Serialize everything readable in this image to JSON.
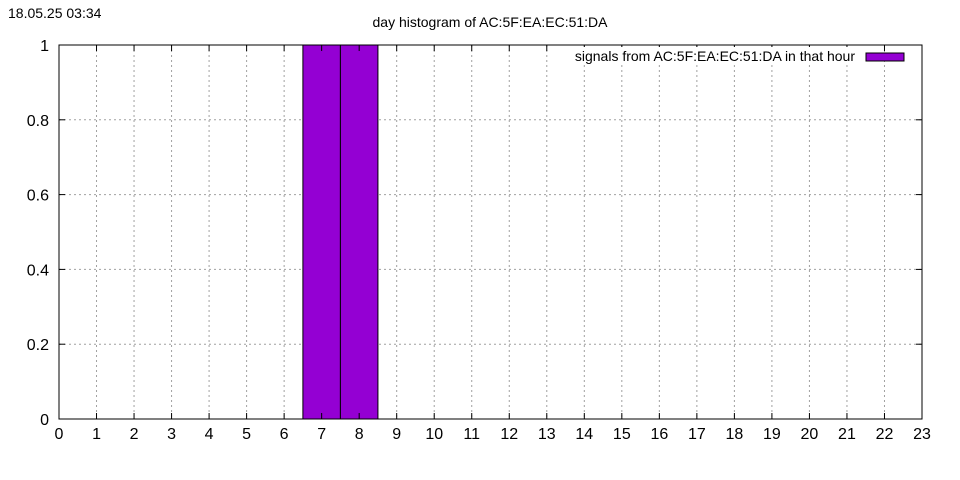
{
  "timestamp": "18.05.25 03:34",
  "chart_data": {
    "type": "bar",
    "title": "day histogram of AC:5F:EA:EC:51:DA",
    "xlabel": "",
    "ylabel": "",
    "x": [
      0,
      1,
      2,
      3,
      4,
      5,
      6,
      7,
      8,
      9,
      10,
      11,
      12,
      13,
      14,
      15,
      16,
      17,
      18,
      19,
      20,
      21,
      22,
      23
    ],
    "xlim": [
      0,
      23
    ],
    "ylim": [
      0,
      1
    ],
    "x_ticks": [
      "0",
      "1",
      "2",
      "3",
      "4",
      "5",
      "6",
      "7",
      "8",
      "9",
      "10",
      "11",
      "12",
      "13",
      "14",
      "15",
      "16",
      "17",
      "18",
      "19",
      "20",
      "21",
      "22",
      "23"
    ],
    "y_ticks": [
      "0",
      "0.2",
      "0.4",
      "0.6",
      "0.8",
      "1"
    ],
    "grid": true,
    "legend_position": "top-right",
    "series": [
      {
        "name": "signals from AC:5F:EA:EC:51:DA in that hour",
        "color": "#9400d3",
        "values": [
          0,
          0,
          0,
          0,
          0,
          0,
          0,
          1,
          1,
          0,
          0,
          0,
          0,
          0,
          0,
          0,
          0,
          0,
          0,
          0,
          0,
          0,
          0,
          0
        ]
      }
    ]
  }
}
